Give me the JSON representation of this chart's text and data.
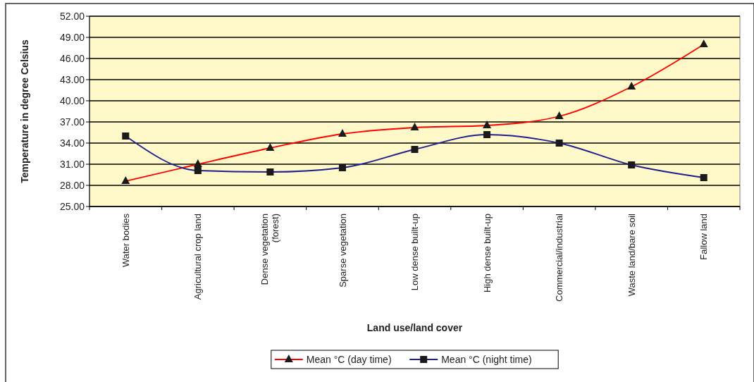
{
  "chart_data": {
    "type": "line",
    "xlabel": "Land use/land cover",
    "ylabel": "Temperature in degree Celsius",
    "categories": [
      "Water bodies",
      "Agricultural crop land",
      "Dense vegetation (forest)",
      "Sparse vegetation",
      "Low dense built-up",
      "High dense built-up",
      "Commercial/industrial",
      "Waste land/bare soil",
      "Fallow land"
    ],
    "series": [
      {
        "name": "Mean °C (day time)",
        "color": "#ff0000",
        "marker": "triangle",
        "values": [
          28.6,
          31.0,
          33.3,
          35.3,
          36.2,
          36.5,
          37.8,
          42.0,
          48.0
        ]
      },
      {
        "name": "Mean °C (night time)",
        "color": "#1f1f8f",
        "marker": "square",
        "values": [
          35.0,
          30.1,
          29.9,
          30.5,
          33.1,
          35.2,
          34.0,
          30.9,
          29.1
        ]
      }
    ],
    "ylim": [
      25,
      52
    ],
    "yticks": [
      {
        "value": 25,
        "label": "25.00"
      },
      {
        "value": 28,
        "label": "28.00"
      },
      {
        "value": 31,
        "label": "31.00"
      },
      {
        "value": 34,
        "label": "34.00"
      },
      {
        "value": 37,
        "label": "37.00"
      },
      {
        "value": 40,
        "label": "40.00"
      },
      {
        "value": 43,
        "label": "43.00"
      },
      {
        "value": 46,
        "label": "46.00"
      },
      {
        "value": 49,
        "label": "49.00"
      },
      {
        "value": 52,
        "label": "52.00"
      }
    ],
    "grid": "y",
    "legend": "bottom"
  }
}
